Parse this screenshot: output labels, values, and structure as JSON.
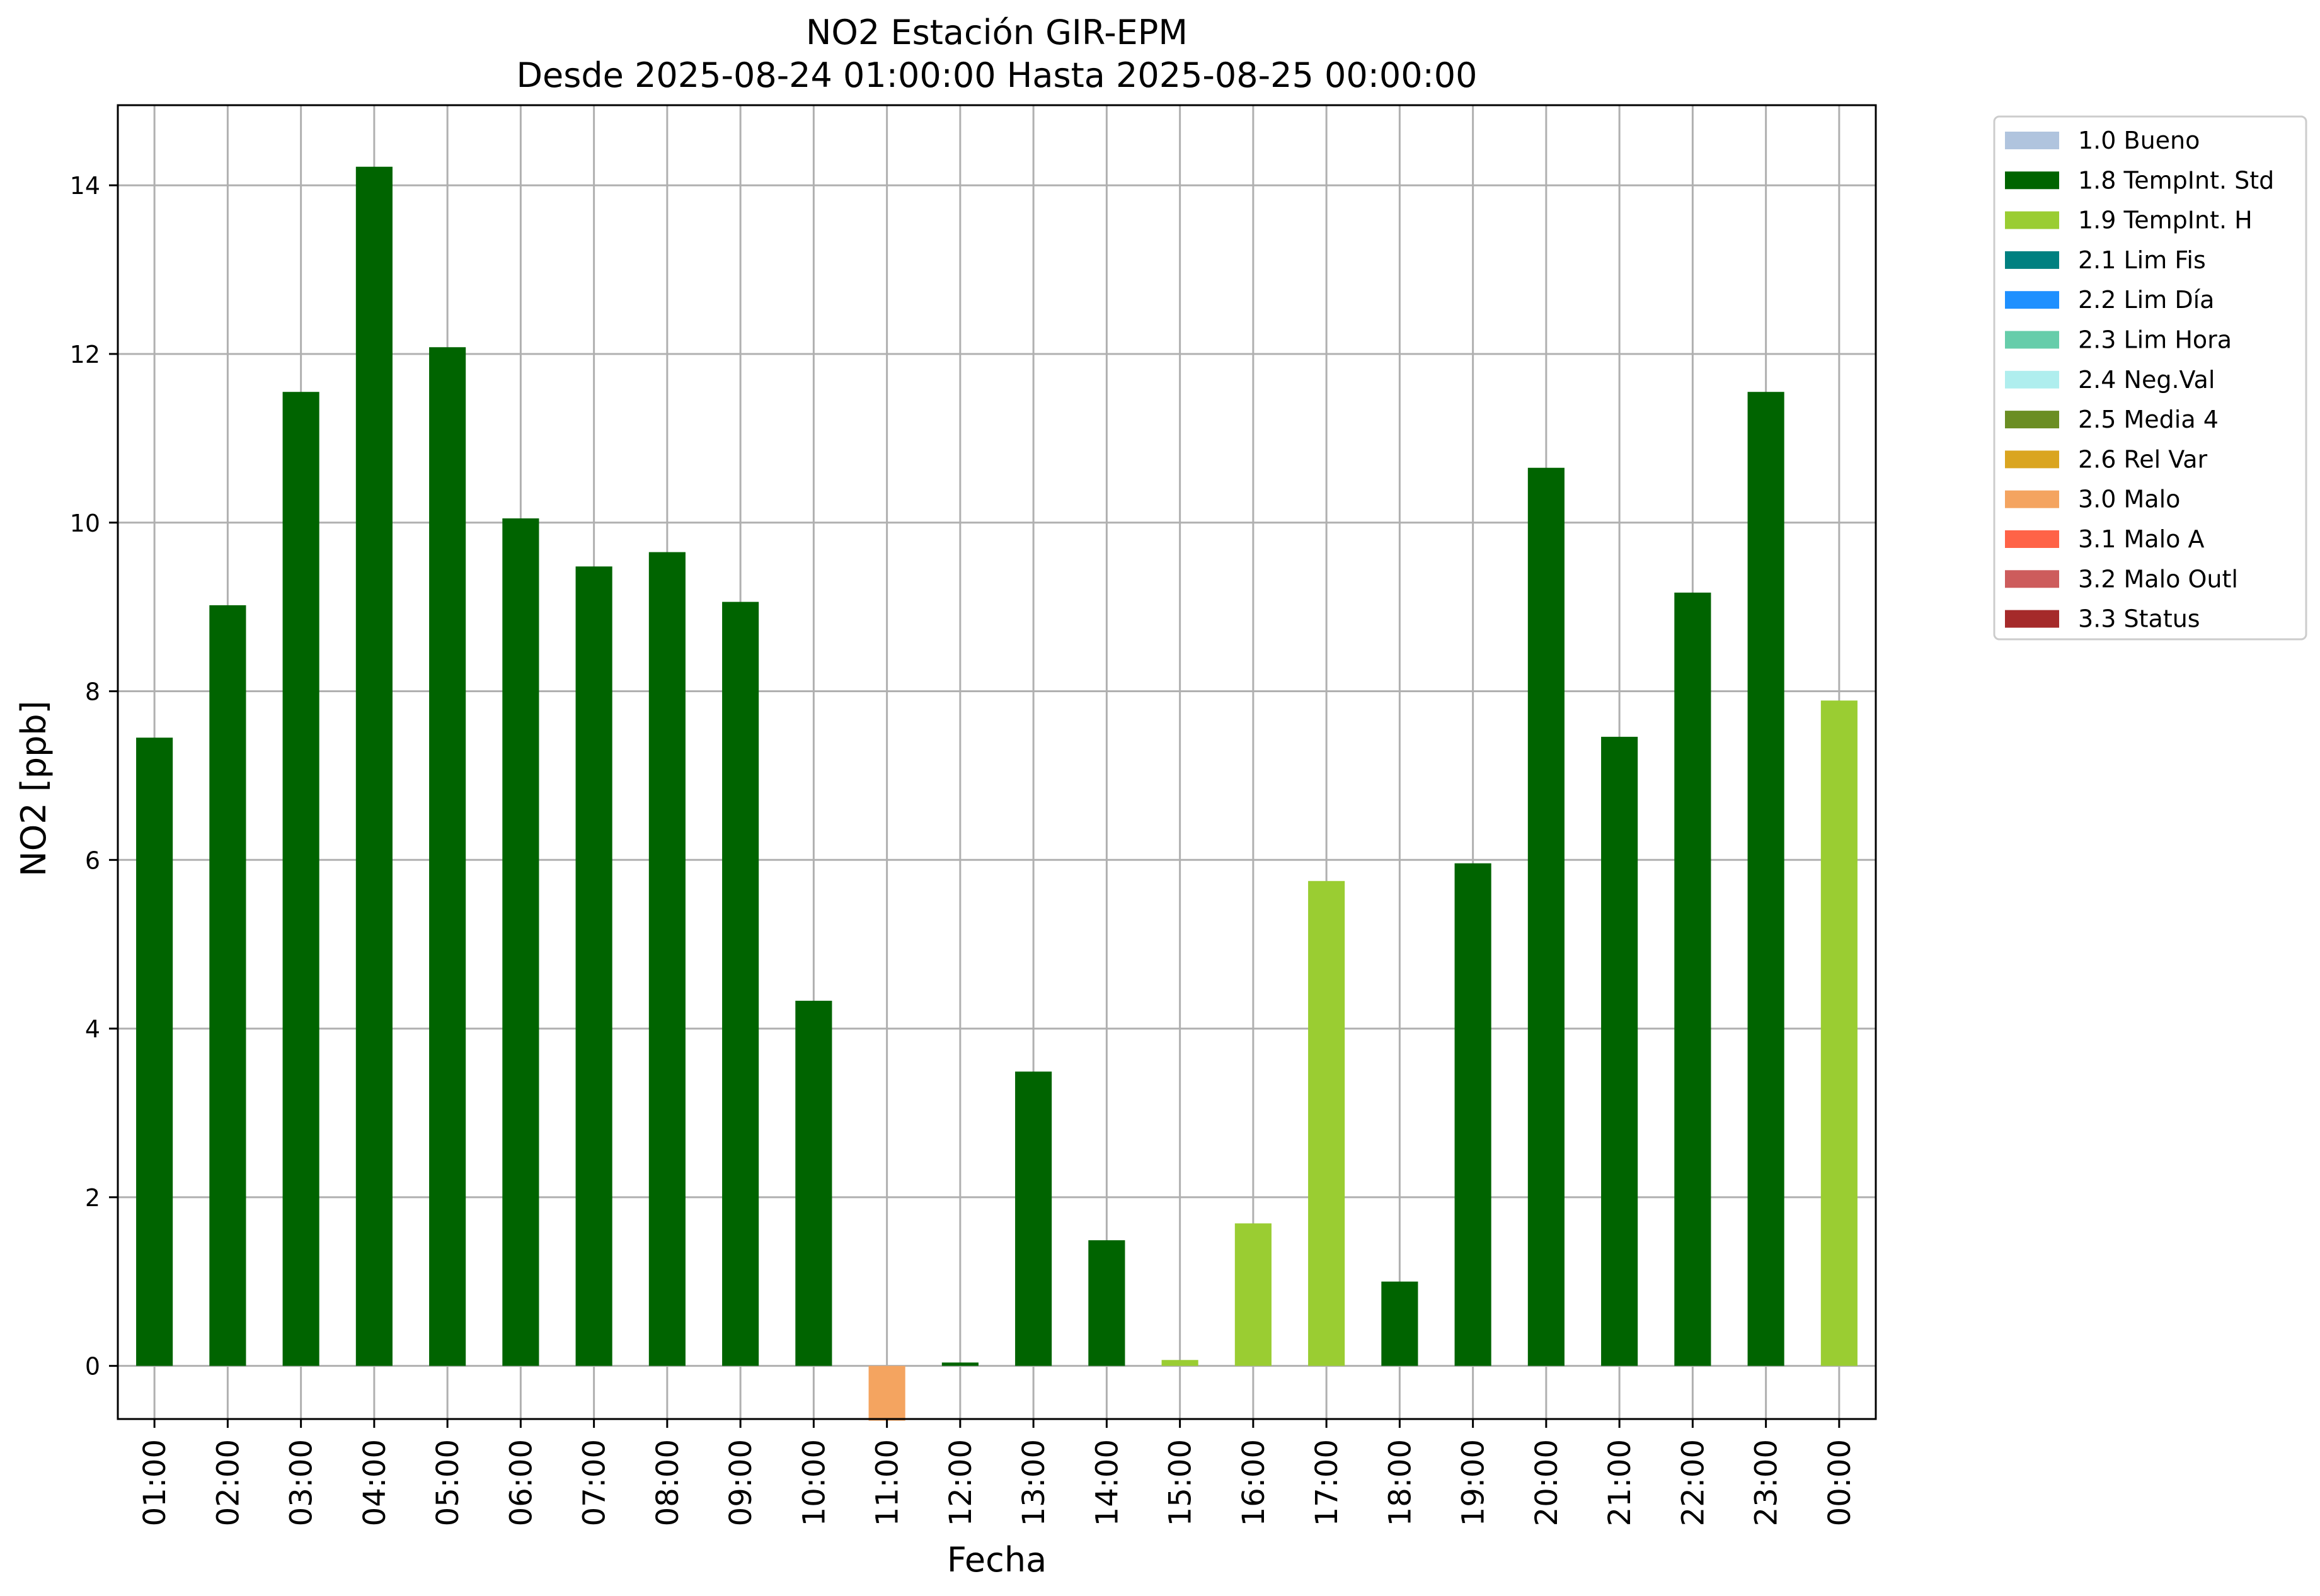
{
  "chart_data": {
    "type": "bar",
    "title": "NO2 Estación GIR-EPM",
    "subtitle": "Desde 2025-08-24 01:00:00 Hasta 2025-08-25 00:00:00",
    "xlabel": "Fecha",
    "ylabel": "NO2 [ppb]",
    "ylim": [
      -0.63,
      14.95
    ],
    "yticks": [
      0,
      2,
      4,
      6,
      8,
      10,
      12,
      14
    ],
    "grid": true,
    "legend_position": "outside-top-right",
    "categories": [
      "01:00",
      "02:00",
      "03:00",
      "04:00",
      "05:00",
      "06:00",
      "07:00",
      "08:00",
      "09:00",
      "10:00",
      "11:00",
      "12:00",
      "13:00",
      "14:00",
      "15:00",
      "16:00",
      "17:00",
      "18:00",
      "19:00",
      "20:00",
      "21:00",
      "22:00",
      "23:00",
      "00:00"
    ],
    "values": [
      7.45,
      9.02,
      11.55,
      14.22,
      12.08,
      10.05,
      9.48,
      9.65,
      9.06,
      4.33,
      -0.65,
      0.04,
      3.49,
      1.49,
      0.07,
      1.69,
      5.75,
      1.0,
      5.96,
      10.65,
      7.46,
      9.17,
      11.55,
      7.89
    ],
    "flags": [
      "1.8 TempInt. Std",
      "1.8 TempInt. Std",
      "1.8 TempInt. Std",
      "1.8 TempInt. Std",
      "1.8 TempInt. Std",
      "1.8 TempInt. Std",
      "1.8 TempInt. Std",
      "1.8 TempInt. Std",
      "1.8 TempInt. Std",
      "1.8 TempInt. Std",
      "3.0 Malo",
      "1.8 TempInt. Std",
      "1.8 TempInt. Std",
      "1.8 TempInt. Std",
      "1.9 TempInt. H",
      "1.9 TempInt. H",
      "1.9 TempInt. H",
      "1.8 TempInt. Std",
      "1.8 TempInt. Std",
      "1.8 TempInt. Std",
      "1.8 TempInt. Std",
      "1.8 TempInt. Std",
      "1.8 TempInt. Std",
      "1.9 TempInt. H"
    ],
    "legend": [
      {
        "label": "1.0 Bueno",
        "color": "#b0c4de"
      },
      {
        "label": "1.8 TempInt. Std",
        "color": "#006400"
      },
      {
        "label": "1.9 TempInt. H",
        "color": "#9acd32"
      },
      {
        "label": "2.1 Lim Fis",
        "color": "#008080"
      },
      {
        "label": "2.2 Lim Día",
        "color": "#1e90ff"
      },
      {
        "label": "2.3 Lim Hora",
        "color": "#66cdaa"
      },
      {
        "label": "2.4 Neg.Val",
        "color": "#afeeee"
      },
      {
        "label": "2.5 Media 4",
        "color": "#6b8e23"
      },
      {
        "label": "2.6 Rel Var",
        "color": "#daa520"
      },
      {
        "label": "3.0 Malo",
        "color": "#f4a460"
      },
      {
        "label": "3.1 Malo A",
        "color": "#ff6347"
      },
      {
        "label": "3.2 Malo Outl",
        "color": "#cd5c5c"
      },
      {
        "label": "3.3 Status",
        "color": "#a52a2a"
      }
    ]
  }
}
